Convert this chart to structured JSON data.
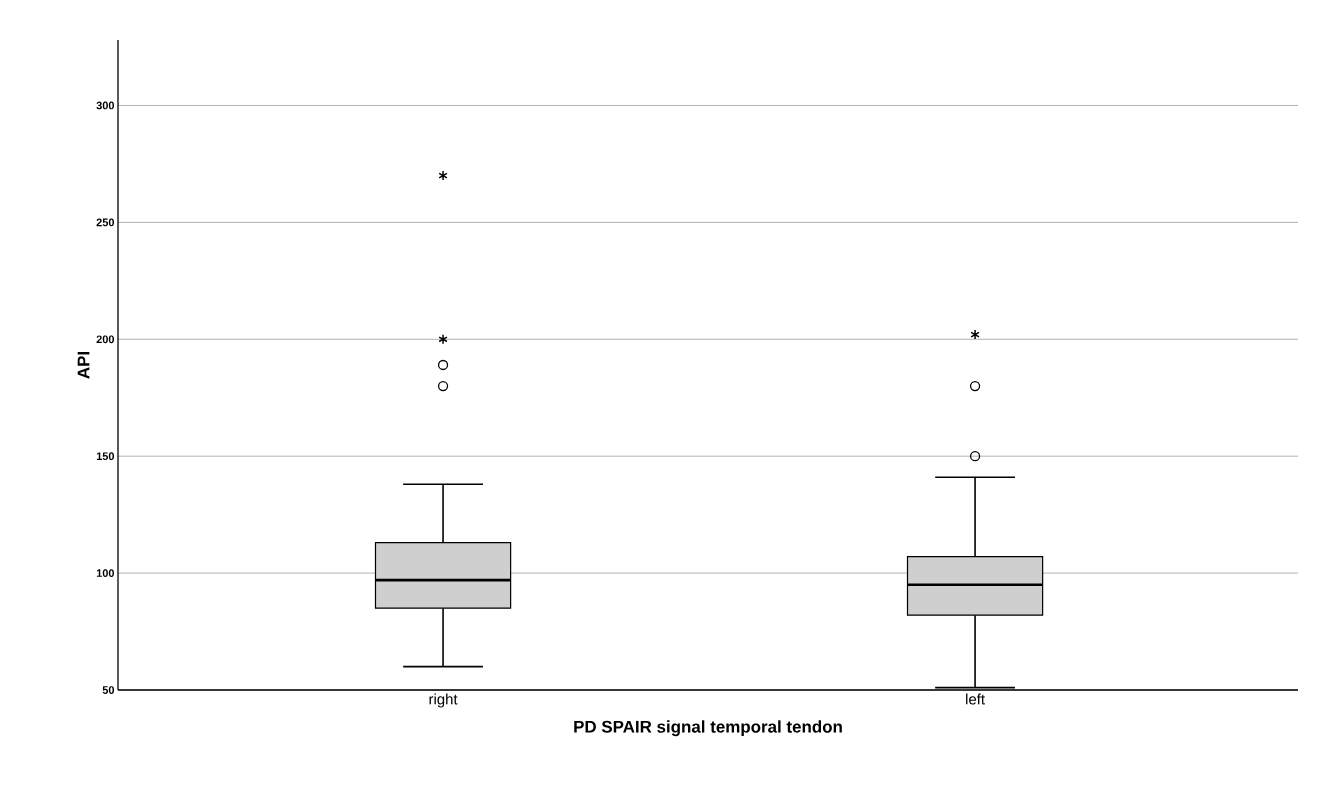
{
  "chart_data": {
    "type": "box",
    "xlabel": "PD SPAIR signal temporal tendon",
    "ylabel": "API",
    "categories": [
      "right",
      "left"
    ],
    "boxes": [
      {
        "low": 60,
        "q1": 85,
        "median": 97,
        "q3": 113,
        "high": 138,
        "outliers": [
          180,
          189,
          200,
          270
        ]
      },
      {
        "low": 51,
        "q1": 82,
        "median": 95,
        "q3": 107,
        "high": 141,
        "outliers": [
          150,
          180,
          202
        ]
      }
    ],
    "color": "#cfcfcf",
    "ylim": [
      50,
      328
    ],
    "yticks": [
      50,
      100,
      150,
      200,
      250,
      300
    ],
    "grid": "y"
  }
}
